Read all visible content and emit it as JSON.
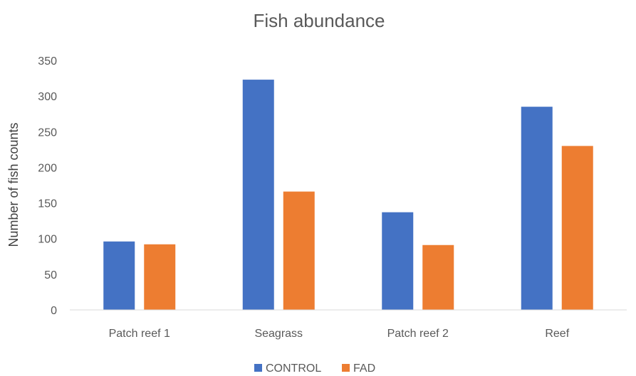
{
  "chart_data": {
    "type": "bar",
    "title": "Fish abundance",
    "xlabel": "",
    "ylabel": "Number of fish counts",
    "ylim": [
      0,
      350
    ],
    "yticks": [
      0,
      50,
      100,
      150,
      200,
      250,
      300,
      350
    ],
    "grid": false,
    "legend": "bottom",
    "categories": [
      "Patch reef 1",
      "Seagrass",
      "Patch reef 2",
      "Reef"
    ],
    "series": [
      {
        "name": "CONTROL",
        "color": "#4472C4",
        "values": [
          96,
          323,
          137,
          285
        ]
      },
      {
        "name": "FAD",
        "color": "#ED7D31",
        "values": [
          92,
          166,
          91,
          230
        ]
      }
    ]
  }
}
